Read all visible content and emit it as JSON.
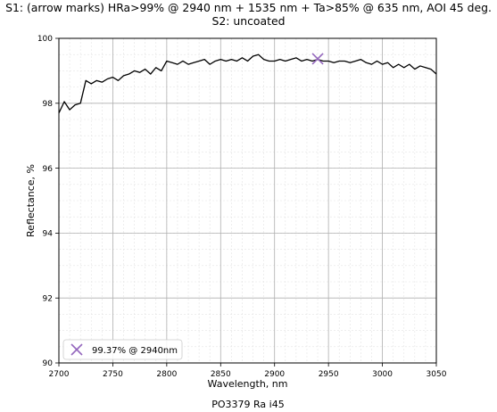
{
  "chart_data": {
    "type": "line",
    "title_line1": "S1: (arrow marks) HRa>99% @ 2940 nm + 1535 nm + Ta>85% @ 635 nm, AOI 45 deg.",
    "title_line2": "S2: uncoated",
    "xlabel": "Wavelength, nm",
    "ylabel": "Reflectance, %",
    "footer": "PO3379 Ra i45",
    "xlim": [
      2700,
      3050
    ],
    "ylim": [
      90,
      100
    ],
    "x_ticks": [
      2700,
      2750,
      2800,
      2850,
      2900,
      2950,
      3000,
      3050
    ],
    "y_ticks": [
      90,
      92,
      94,
      96,
      98,
      100
    ],
    "grid": true,
    "series": [
      {
        "color": "#000000",
        "x": [
          2700,
          2705,
          2710,
          2715,
          2720,
          2725,
          2730,
          2735,
          2740,
          2745,
          2750,
          2755,
          2760,
          2765,
          2770,
          2775,
          2780,
          2785,
          2790,
          2795,
          2800,
          2805,
          2810,
          2815,
          2820,
          2825,
          2830,
          2835,
          2840,
          2845,
          2850,
          2855,
          2860,
          2865,
          2870,
          2875,
          2880,
          2885,
          2890,
          2895,
          2900,
          2905,
          2910,
          2915,
          2920,
          2925,
          2930,
          2935,
          2940,
          2945,
          2950,
          2955,
          2960,
          2965,
          2970,
          2975,
          2980,
          2985,
          2990,
          2995,
          3000,
          3005,
          3010,
          3015,
          3020,
          3025,
          3030,
          3035,
          3040,
          3045,
          3050
        ],
        "y": [
          97.7,
          98.05,
          97.8,
          97.95,
          98.0,
          98.7,
          98.6,
          98.7,
          98.65,
          98.75,
          98.8,
          98.7,
          98.85,
          98.9,
          99.0,
          98.95,
          99.05,
          98.9,
          99.1,
          99.0,
          99.3,
          99.25,
          99.2,
          99.3,
          99.2,
          99.25,
          99.3,
          99.35,
          99.2,
          99.3,
          99.35,
          99.3,
          99.35,
          99.3,
          99.4,
          99.3,
          99.45,
          99.5,
          99.35,
          99.3,
          99.3,
          99.35,
          99.3,
          99.35,
          99.4,
          99.3,
          99.35,
          99.3,
          99.35,
          99.3,
          99.3,
          99.25,
          99.3,
          99.3,
          99.25,
          99.3,
          99.35,
          99.25,
          99.2,
          99.3,
          99.2,
          99.25,
          99.1,
          99.2,
          99.1,
          99.2,
          99.05,
          99.15,
          99.1,
          99.05,
          98.9
        ]
      }
    ],
    "markers": [
      {
        "x": 2940,
        "y": 99.37,
        "symbol": "x",
        "color": "#9467bd",
        "label": "99.37% @ 2940nm"
      }
    ],
    "legend_position": "lower-left"
  }
}
